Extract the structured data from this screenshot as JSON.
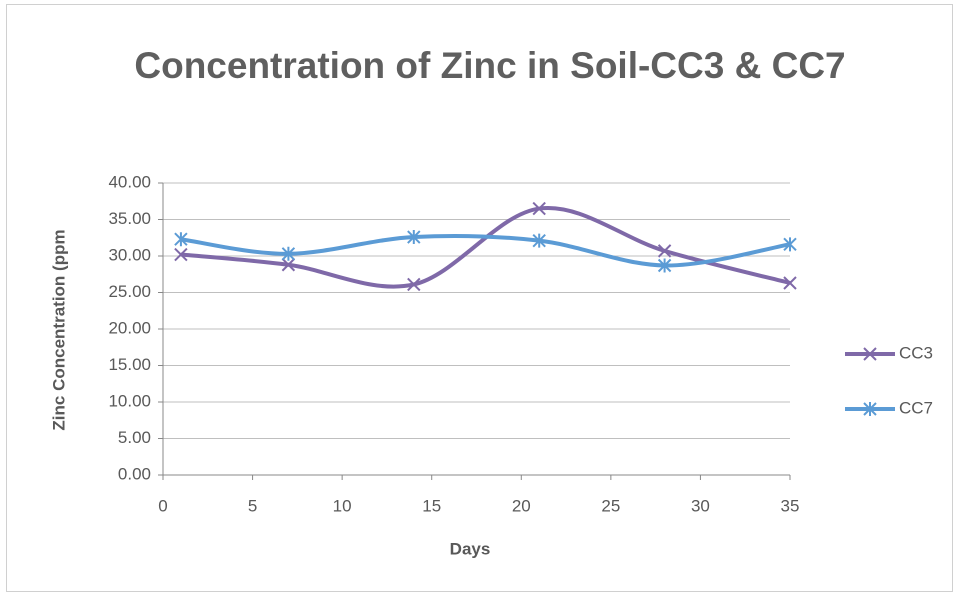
{
  "chart_data": {
    "type": "line",
    "title": "Concentration of Zinc in Soil-CC3 & CC7",
    "x_label": "Days",
    "y_label": "Zinc Concentration (ppm",
    "x": [
      1,
      7,
      14,
      21,
      28,
      35
    ],
    "series": [
      {
        "name": "CC3",
        "color": "#7f69a8",
        "marker": "x",
        "values": [
          30.2,
          28.8,
          26.1,
          36.5,
          30.7,
          26.3
        ]
      },
      {
        "name": "CC7",
        "color": "#5b9bd5",
        "marker": "star",
        "values": [
          32.3,
          30.3,
          32.6,
          32.1,
          28.7,
          31.6
        ]
      }
    ],
    "xlim": [
      0,
      35
    ],
    "xticks": [
      0,
      5,
      10,
      15,
      20,
      25,
      30,
      35
    ],
    "ylim": [
      0,
      40
    ],
    "yticks": [
      {
        "value": 0,
        "label": "0.00"
      },
      {
        "value": 5,
        "label": "5.00"
      },
      {
        "value": 10,
        "label": "10.00"
      },
      {
        "value": 15,
        "label": "15.00"
      },
      {
        "value": 20,
        "label": "20.00"
      },
      {
        "value": 25,
        "label": "25.00"
      },
      {
        "value": 30,
        "label": "30.00"
      },
      {
        "value": 35,
        "label": "35.00"
      },
      {
        "value": 40,
        "label": "40.00"
      }
    ],
    "grid": true,
    "smooth": true,
    "legend": "right"
  }
}
